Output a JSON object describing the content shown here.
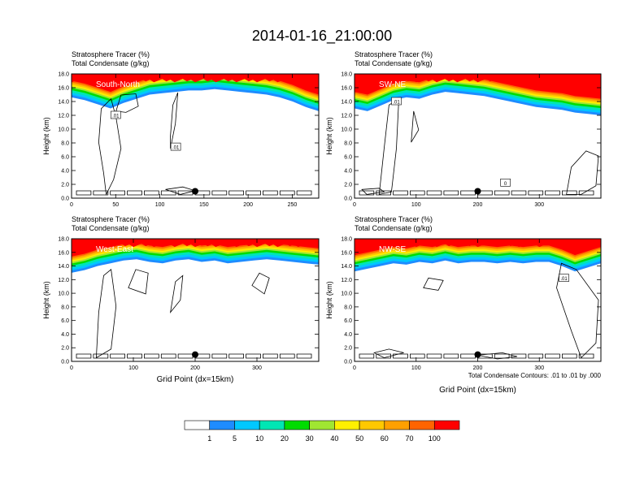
{
  "page": {
    "title": "2014-01-16_21:00:00"
  },
  "colorbar": {
    "labels": [
      "1",
      "5",
      "10",
      "20",
      "30",
      "40",
      "50",
      "60",
      "70",
      "100"
    ],
    "colors": [
      "#ffffff",
      "#1e8cff",
      "#00c8ff",
      "#00e6b4",
      "#00dc00",
      "#a0e632",
      "#fff000",
      "#ffc800",
      "#ffa000",
      "#ff6400",
      "#ff0000"
    ]
  },
  "footnote": "Total Condensate Contours: .01 to .01 by .000",
  "chart_data": [
    {
      "type": "contour",
      "label": "South-North",
      "subtitle_line1": "Stratosphere Tracer   (%)",
      "subtitle_line2": "Total Condensate   (g/kg)",
      "ylabel": "Height (km)",
      "xlabel": "",
      "xlim": [
        0,
        280
      ],
      "ylim": [
        0,
        18
      ],
      "xticks": [
        "0",
        "50",
        "100",
        "150",
        "200",
        "250"
      ],
      "xtick_values": [
        0,
        50,
        100,
        150,
        200,
        250
      ],
      "yticks": [
        "0.0",
        "2.0",
        "4.0",
        "6.0",
        "8.0",
        "10.0",
        "12.0",
        "14.0",
        "16.0",
        "18.0"
      ],
      "tracer_base_km": [
        14.6,
        14.2,
        13.6,
        13.0,
        13.8,
        14.4,
        15.0,
        15.2,
        15.4,
        15.6,
        15.6,
        15.8,
        15.6,
        15.4,
        15.2,
        15.0,
        14.6,
        14.0,
        13.2,
        12.6
      ],
      "tracer_top_band_km": 16.8,
      "marker": {
        "x": 140,
        "y": 1.0
      },
      "contour_labels": [
        {
          "text": ".01",
          "x": 50,
          "y": 12.0
        },
        {
          "text": ".01",
          "x": 118,
          "y": 7.4
        }
      ]
    },
    {
      "type": "contour",
      "label": "SW-NE",
      "subtitle_line1": "Stratosphere Tracer   (%)",
      "subtitle_line2": "Total Condensate   (g/kg)",
      "ylabel": "Height (km)",
      "xlabel": "",
      "xlim": [
        0,
        400
      ],
      "ylim": [
        0,
        18
      ],
      "xticks": [
        "0",
        "100",
        "200",
        "300"
      ],
      "xtick_values": [
        0,
        100,
        200,
        300
      ],
      "yticks": [
        "0.0",
        "2.0",
        "4.0",
        "6.0",
        "8.0",
        "10.0",
        "12.0",
        "14.0",
        "16.0",
        "18.0"
      ],
      "tracer_base_km": [
        13.0,
        12.6,
        13.4,
        14.2,
        14.6,
        14.4,
        15.0,
        15.4,
        15.2,
        15.0,
        14.8,
        14.4,
        14.0,
        13.6,
        13.2,
        13.0,
        12.8,
        12.4,
        12.2,
        12.0
      ],
      "tracer_top_band_km": 16.8,
      "marker": {
        "x": 200,
        "y": 1.0
      },
      "contour_labels": [
        {
          "text": ".01",
          "x": 68,
          "y": 14.0
        },
        {
          "text": "0",
          "x": 245,
          "y": 2.2
        }
      ]
    },
    {
      "type": "contour",
      "label": "West-East",
      "subtitle_line1": "Stratosphere Tracer   (%)",
      "subtitle_line2": "Total Condensate   (g/kg)",
      "ylabel": "Height (km)",
      "xlabel": "Grid Point (dx=15km)",
      "xlim": [
        0,
        400
      ],
      "ylim": [
        0,
        18
      ],
      "xticks": [
        "0",
        "100",
        "200",
        "300"
      ],
      "xtick_values": [
        0,
        100,
        200,
        300
      ],
      "yticks": [
        "0.0",
        "2.0",
        "4.0",
        "6.0",
        "8.0",
        "10.0",
        "12.0",
        "14.0",
        "16.0",
        "18.0"
      ],
      "tracer_base_km": [
        13.0,
        13.4,
        14.0,
        14.4,
        14.8,
        15.0,
        14.6,
        14.4,
        14.8,
        15.0,
        14.6,
        14.8,
        14.4,
        14.6,
        14.8,
        15.0,
        14.8,
        14.6,
        14.4,
        14.2
      ],
      "tracer_top_band_km": 16.8,
      "marker": {
        "x": 200,
        "y": 1.0
      },
      "contour_labels": []
    },
    {
      "type": "contour",
      "label": "NW-SE",
      "subtitle_line1": "Stratosphere Tracer   (%)",
      "subtitle_line2": "Total Condensate   (g/kg)",
      "ylabel": "Height (km)",
      "xlabel": "Grid Point (dx=15km)",
      "xlim": [
        0,
        400
      ],
      "ylim": [
        0,
        18
      ],
      "xticks": [
        "0",
        "100",
        "200",
        "300"
      ],
      "xtick_values": [
        0,
        100,
        200,
        300
      ],
      "yticks": [
        "0.0",
        "2.0",
        "4.0",
        "6.0",
        "8.0",
        "10.0",
        "12.0",
        "14.0",
        "16.0",
        "18.0"
      ],
      "tracer_base_km": [
        13.2,
        13.6,
        14.0,
        14.4,
        14.2,
        14.6,
        14.4,
        14.8,
        14.4,
        14.6,
        14.6,
        14.4,
        14.6,
        14.4,
        14.6,
        14.6,
        14.0,
        13.2,
        13.8,
        14.4
      ],
      "tracer_top_band_km": 16.8,
      "marker": {
        "x": 200,
        "y": 1.0
      },
      "contour_labels": [
        {
          "text": ".01",
          "x": 340,
          "y": 12.2
        }
      ]
    }
  ]
}
